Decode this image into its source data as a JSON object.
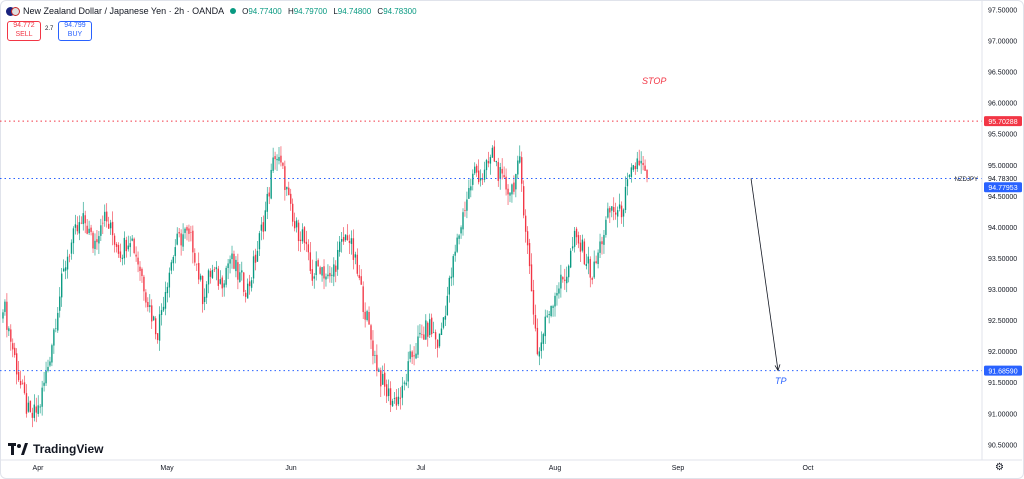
{
  "header": {
    "title": "New Zealand Dollar / Japanese Yen · 2h · OANDA",
    "ohlc": [
      {
        "k": "O",
        "v": "94.77400"
      },
      {
        "k": "H",
        "v": "94.79700"
      },
      {
        "k": "L",
        "v": "94.74800"
      },
      {
        "k": "C",
        "v": "94.78300"
      }
    ],
    "sell_price": "94.772",
    "sell_label": "SELL",
    "spread": "2.7",
    "buy_price": "94.799",
    "buy_label": "BUY"
  },
  "branding": {
    "logo_text": "TradingView"
  },
  "colors": {
    "up": "#089981",
    "down": "#f23645",
    "accent": "#2962ff",
    "stop": "#f23645",
    "tp": "#2962ff"
  },
  "annotations": {
    "stop_label": "STOP",
    "tp_label": "TP",
    "symbol_tag": "NZDJPY"
  },
  "chart_data": {
    "type": "candlestick",
    "symbol": "NZDJPY",
    "interval": "2h",
    "x_labels": [
      "Apr",
      "May",
      "Jun",
      "Jul",
      "Aug",
      "Sep",
      "Oct"
    ],
    "y_ticks": [
      97.5,
      97.0,
      96.5,
      96.0,
      95.5,
      95.0,
      94.5,
      94.0,
      93.5,
      93.0,
      92.5,
      92.0,
      91.5,
      91.0,
      90.5
    ],
    "ylim": [
      90.28,
      97.62
    ],
    "months": [
      "Apr",
      "May",
      "Jun",
      "Jul",
      "Aug",
      "Sep",
      "Oct"
    ],
    "price_path_close": [
      [
        "Mar",
        92.8
      ],
      [
        "Mar",
        92.1
      ],
      [
        "Mar",
        91.4
      ],
      [
        "Apr",
        90.9
      ],
      [
        "Apr",
        91.1
      ],
      [
        "Apr",
        91.8
      ],
      [
        "Apr",
        92.7
      ],
      [
        "Apr",
        93.5
      ],
      [
        "Apr",
        93.9
      ],
      [
        "Apr",
        94.1
      ],
      [
        "Apr",
        93.7
      ],
      [
        "Apr",
        94.2
      ],
      [
        "Apr",
        93.9
      ],
      [
        "Apr",
        93.6
      ],
      [
        "Apr",
        93.9
      ],
      [
        "Apr",
        93.4
      ],
      [
        "May",
        92.8
      ],
      [
        "May",
        92.3
      ],
      [
        "May",
        93.1
      ],
      [
        "May",
        93.7
      ],
      [
        "May",
        93.9
      ],
      [
        "May",
        93.7
      ],
      [
        "May",
        92.9
      ],
      [
        "May",
        93.3
      ],
      [
        "May",
        93.1
      ],
      [
        "May",
        93.5
      ],
      [
        "May",
        93.2
      ],
      [
        "May",
        93.0
      ],
      [
        "May",
        93.6
      ],
      [
        "May",
        94.3
      ],
      [
        "Jun",
        95.2
      ],
      [
        "Jun",
        94.8
      ],
      [
        "Jun",
        94.0
      ],
      [
        "Jun",
        93.9
      ],
      [
        "Jun",
        93.2
      ],
      [
        "Jun",
        93.4
      ],
      [
        "Jun",
        93.1
      ],
      [
        "Jun",
        93.6
      ],
      [
        "Jun",
        93.9
      ],
      [
        "Jun",
        93.3
      ],
      [
        "Jun",
        92.6
      ],
      [
        "Jun",
        91.9
      ],
      [
        "Jun",
        91.4
      ],
      [
        "Jul",
        91.2
      ],
      [
        "Jul",
        91.3
      ],
      [
        "Jul",
        91.9
      ],
      [
        "Jul",
        92.2
      ],
      [
        "Jul",
        92.4
      ],
      [
        "Jul",
        92.1
      ],
      [
        "Jul",
        92.9
      ],
      [
        "Jul",
        93.7
      ],
      [
        "Jul",
        94.4
      ],
      [
        "Jul",
        94.9
      ],
      [
        "Jul",
        94.8
      ],
      [
        "Jul",
        95.2
      ],
      [
        "Jul",
        94.7
      ],
      [
        "Jul",
        94.6
      ],
      [
        "Aug",
        95.0
      ],
      [
        "Aug",
        93.4
      ],
      [
        "Aug",
        91.9
      ],
      [
        "Aug",
        92.6
      ],
      [
        "Aug",
        93.0
      ],
      [
        "Aug",
        93.2
      ],
      [
        "Aug",
        93.8
      ],
      [
        "Aug",
        93.6
      ],
      [
        "Aug",
        93.2
      ],
      [
        "Aug",
        93.8
      ],
      [
        "Aug",
        94.3
      ],
      [
        "Aug",
        94.2
      ],
      [
        "Aug",
        94.7
      ],
      [
        "Aug",
        95.1
      ],
      [
        "Aug",
        94.78
      ]
    ],
    "last_price": 94.783,
    "levels": [
      {
        "name": "STOP",
        "value": "95.70288"
      },
      {
        "name": "entry",
        "value": "94.77953"
      },
      {
        "name": "TP",
        "value": "91.68590"
      }
    ],
    "price_label_last": "94.78300",
    "arrow": {
      "from_date": "late Aug",
      "from_price": 94.78,
      "to_date": "mid Sep",
      "to_price": 91.69
    }
  }
}
